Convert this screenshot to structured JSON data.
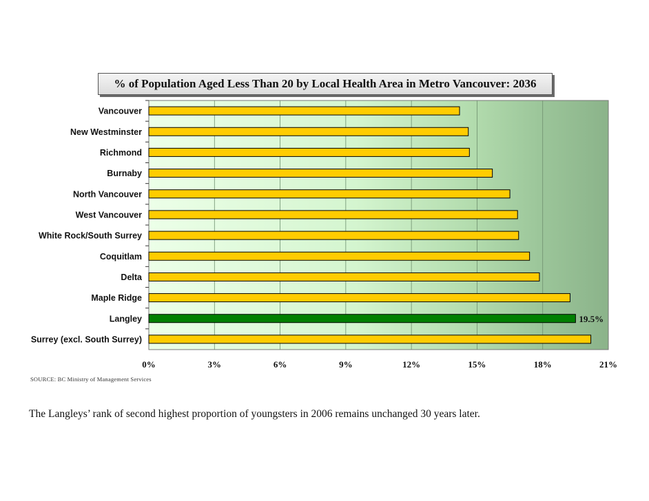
{
  "chart_data": {
    "type": "bar",
    "orientation": "horizontal",
    "title": "% of Population Aged Less Than 20 by Local Health Area in Metro Vancouver:  2036",
    "categories": [
      "Vancouver",
      "New Westminster",
      "Richmond",
      "Burnaby",
      "North Vancouver",
      "West Vancouver",
      "White Rock/South Surrey",
      "Coquitlam",
      "Delta",
      "Maple Ridge",
      "Langley",
      "Surrey (excl. South Surrey)"
    ],
    "values": [
      14.2,
      14.6,
      14.65,
      15.7,
      16.5,
      16.85,
      16.9,
      17.4,
      17.85,
      19.25,
      19.5,
      20.2
    ],
    "highlight_index": 10,
    "data_labels": [
      "",
      "",
      "",
      "",
      "",
      "",
      "",
      "",
      "",
      "",
      "19.5%",
      ""
    ],
    "x_ticks": [
      "0%",
      "3%",
      "6%",
      "9%",
      "12%",
      "15%",
      "18%",
      "21%"
    ],
    "x_tick_values": [
      0,
      3,
      6,
      9,
      12,
      15,
      18,
      21
    ],
    "xlim": [
      0,
      21
    ],
    "xlabel": "",
    "ylabel": "",
    "grid": true,
    "colors": {
      "bar": "#ffcc00",
      "highlight": "#008000",
      "bar_border": "#000000"
    }
  },
  "source": "SOURCE:  BC Ministry of Management Services",
  "caption": "The Langleys’ rank of second highest proportion of youngsters in 2006 remains unchanged 30 years later."
}
